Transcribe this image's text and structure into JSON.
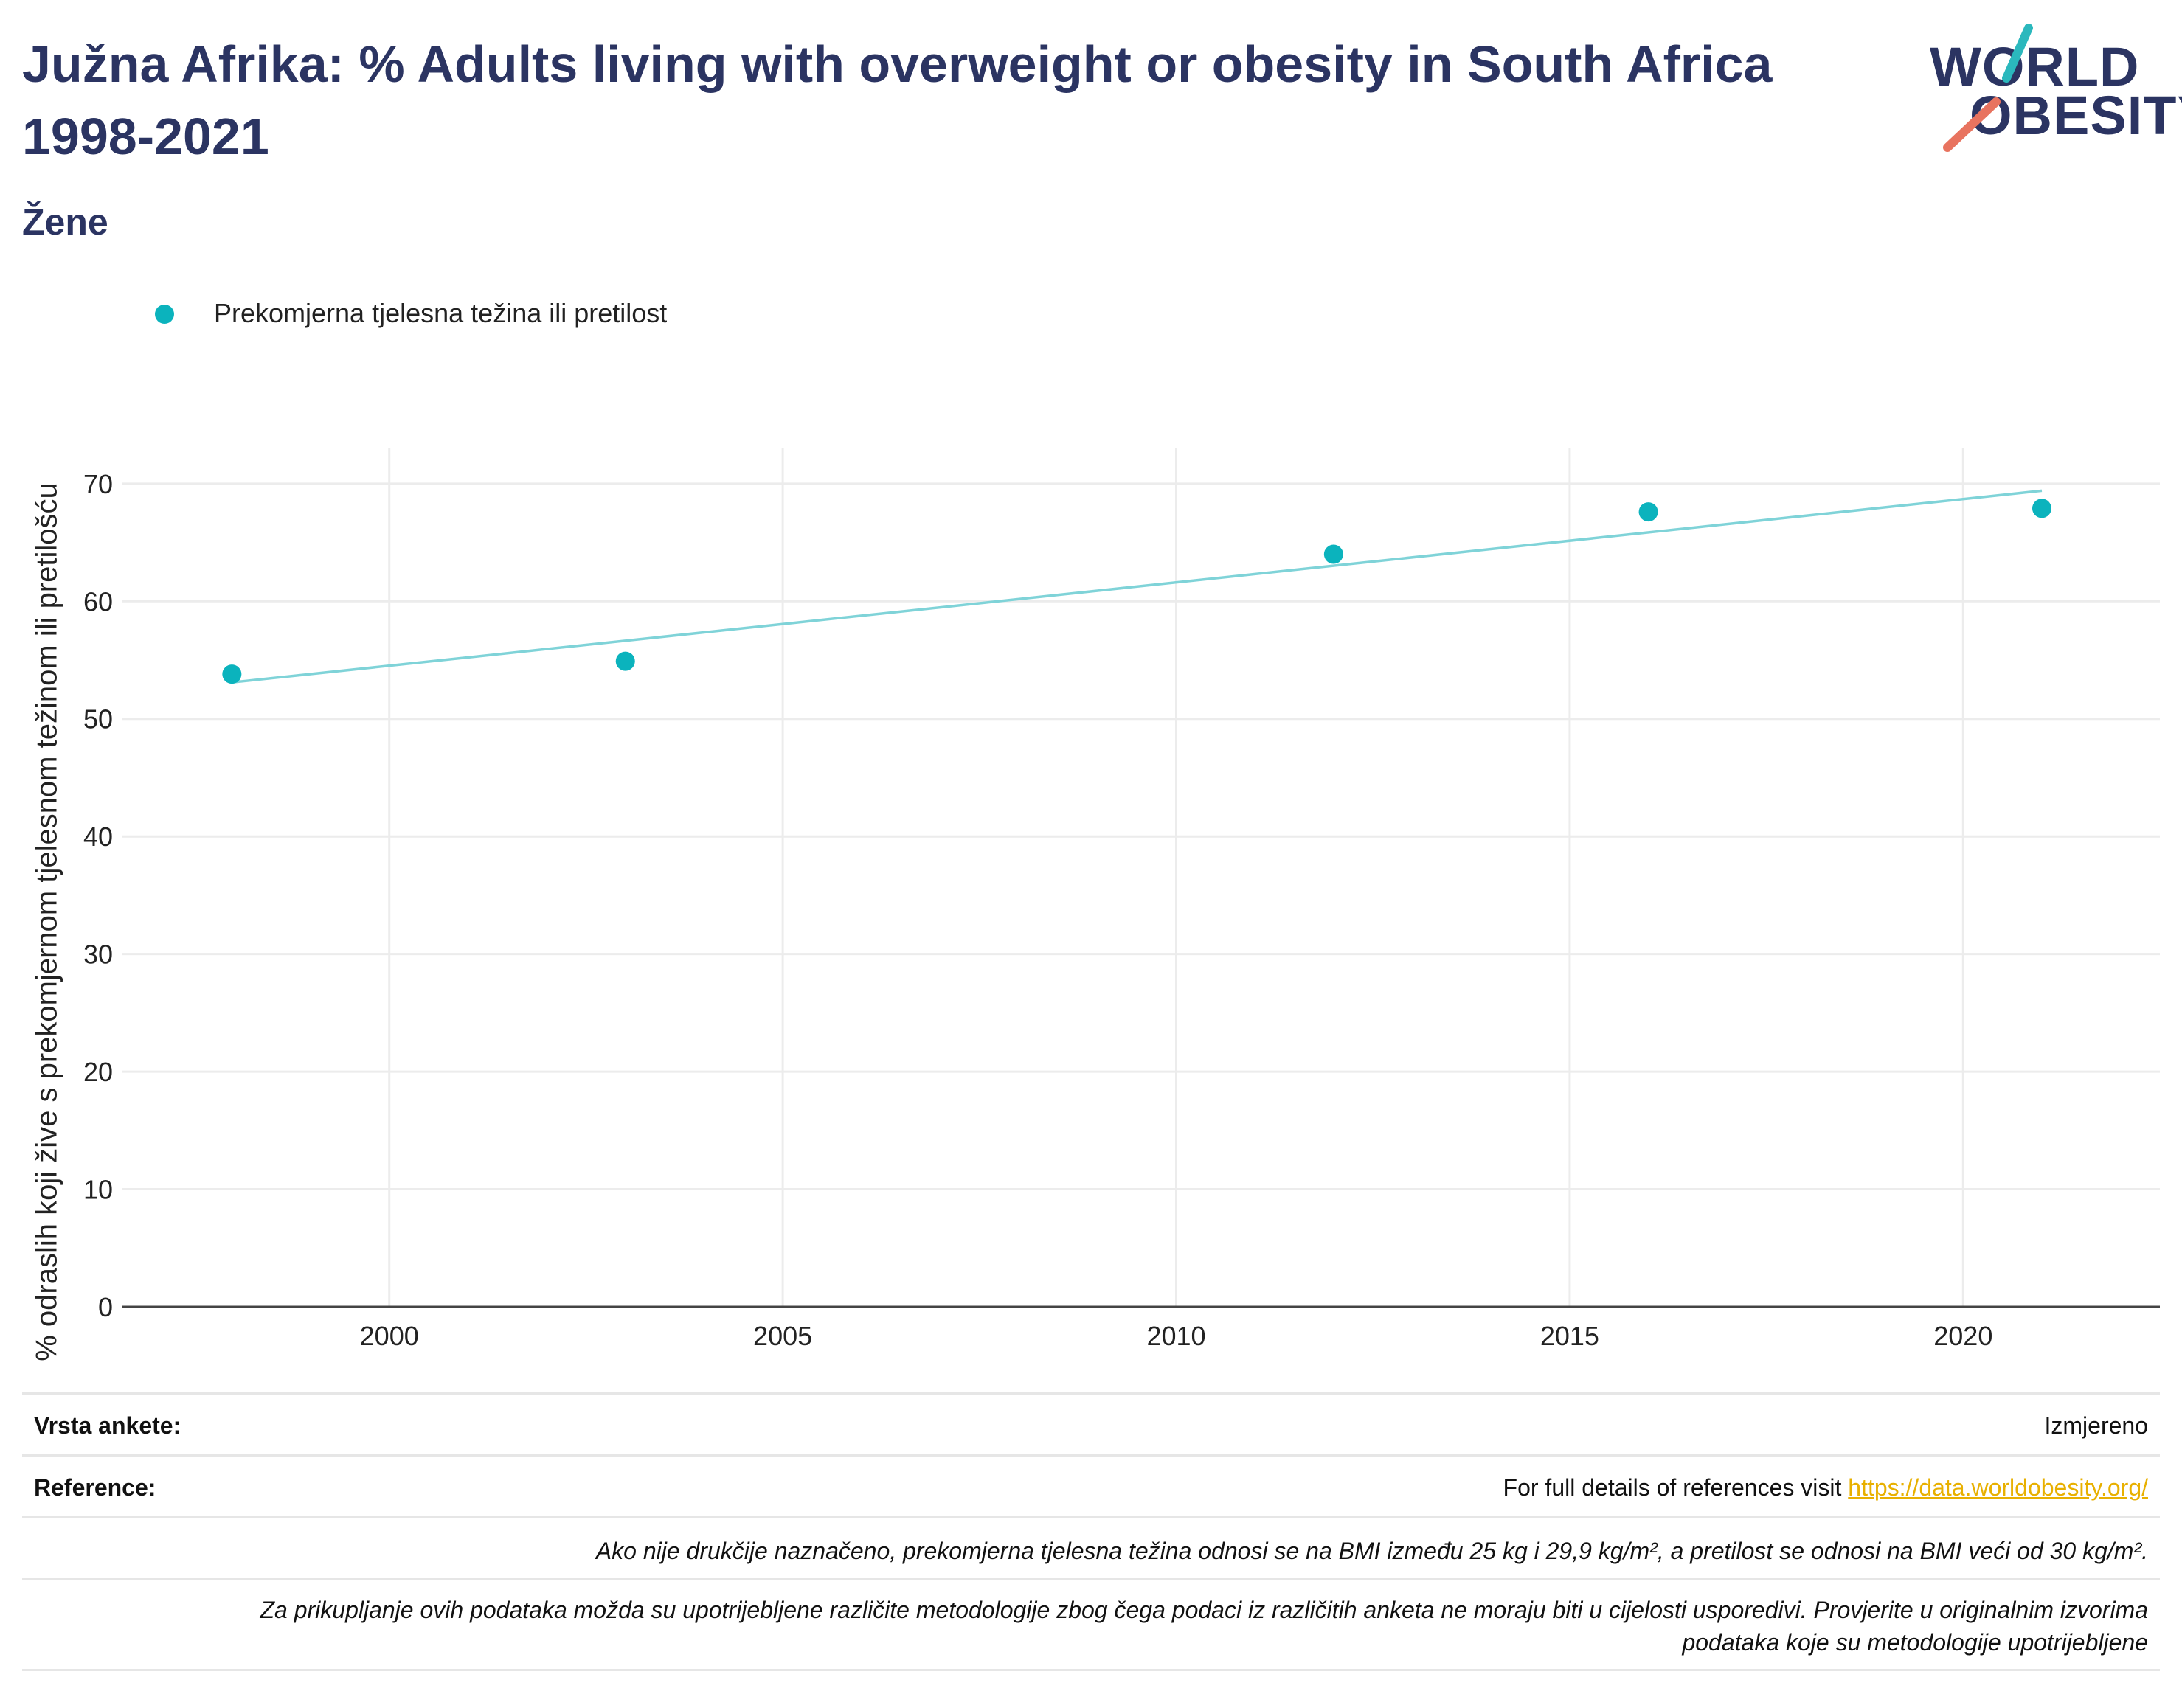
{
  "header": {
    "title": "Južna Afrika: % Adults living with overweight or obesity in South Africa 1998-2021",
    "subtitle": "Žene",
    "logo_line1": "WORLD",
    "logo_line2": "OBESITY"
  },
  "legend": {
    "label": "Prekomjerna tjelesna težina ili pretilost"
  },
  "colors": {
    "series": "#0bb3bd",
    "trend": "#7fd3d8",
    "title": "#2b3462",
    "logo_teal": "#2bb8bd",
    "logo_red": "#e8735f",
    "link": "#e8b000"
  },
  "chart_data": {
    "type": "scatter",
    "ylabel": "% odraslih koji žive s prekomjernom tjelesnom težinom ili pretilošću",
    "xlabel": "",
    "x_ticks": [
      2000,
      2005,
      2010,
      2015,
      2020
    ],
    "y_ticks": [
      0,
      10,
      20,
      30,
      40,
      50,
      60,
      70
    ],
    "xlim": [
      1996.6,
      2022.5
    ],
    "ylim": [
      0,
      73
    ],
    "grid": true,
    "legend_position": "top-left",
    "series": [
      {
        "name": "Prekomjerna tjelesna težina ili pretilost",
        "x": [
          1998,
          2003,
          2012,
          2016,
          2021
        ],
        "y": [
          53.8,
          54.9,
          64.0,
          67.6,
          67.9
        ]
      }
    ],
    "trendline": {
      "x": [
        1998,
        2021
      ],
      "y": [
        53.1,
        69.4
      ]
    }
  },
  "info": {
    "survey_key": "Vrsta ankete:",
    "survey_value": "Izmjereno",
    "reference_key": "Reference:",
    "reference_text": "For full details of references visit ",
    "reference_link": "https://data.worldobesity.org/",
    "note1": "Ako nije drukčije naznačeno, prekomjerna tjelesna težina odnosi se na BMI između 25 kg i 29,9 kg/m², a pretilost se odnosi na BMI veći od 30 kg/m².",
    "note2_line1": "Za prikupljanje ovih podataka možda su upotrijebljene različite metodologije zbog čega podaci iz različitih anketa ne moraju biti u cijelosti usporedivi. Provjerite u originalnim izvorima",
    "note2_line2": "podataka koje su metodologije upotrijebljene"
  }
}
